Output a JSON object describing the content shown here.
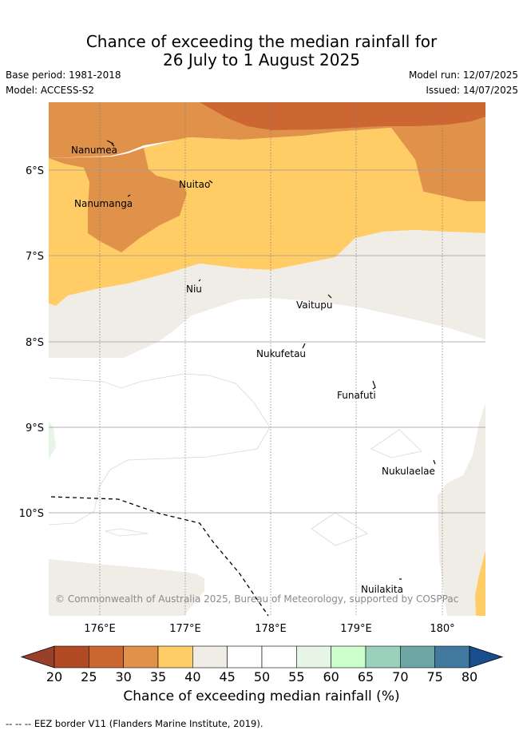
{
  "header": {
    "title_line1": "Chance of exceeding the median rainfall for",
    "title_line2": "26 July to 1 August 2025",
    "base_period": "Base period: 1981-2018",
    "model": "Model: ACCESS-S2",
    "model_run": "Model run: 12/07/2025",
    "issued": "Issued: 14/07/2025"
  },
  "map": {
    "lon_labels": [
      "176°E",
      "177°E",
      "178°E",
      "179°E",
      "180°"
    ],
    "lat_labels": [
      "6°S",
      "7°S",
      "8°S",
      "9°S",
      "10°S"
    ],
    "places": [
      "Nanumea",
      "Nanumanga",
      "Nuitao",
      "Niu",
      "Vaitupu",
      "Nukufetau",
      "Funafuti",
      "Nukulaelae",
      "Nuilakita"
    ],
    "copyright": "© Commonwealth of Australia 2025, Bureau of Meteorology, supported by COSPPac"
  },
  "colorbar": {
    "ticks": [
      "20",
      "25",
      "30",
      "35",
      "40",
      "45",
      "50",
      "55",
      "60",
      "65",
      "70",
      "75",
      "80"
    ],
    "colors": [
      "#b34a26",
      "#cc6733",
      "#e0924a",
      "#ffcc66",
      "#f0ece6",
      "#ffffff",
      "#ffffff",
      "#e6f5e6",
      "#ccffcc",
      "#99d1bb",
      "#6ea6a6",
      "#417a9e"
    ],
    "under_color": "#99402a",
    "over_color": "#1a4d8c",
    "label": "Chance of exceeding median rainfall (%)"
  },
  "footnote": "--  --  -- EEZ border V11 (Flanders Marine Institute, 2019)."
}
